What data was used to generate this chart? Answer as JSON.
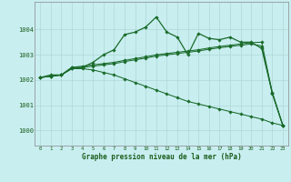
{
  "title": "Graphe pression niveau de la mer (hPa)",
  "bg_color": "#c8eef0",
  "grid_color": "#b0d8d8",
  "line_color": "#1a6b2a",
  "xlim": [
    -0.5,
    23.5
  ],
  "ylim": [
    999.4,
    1005.1
  ],
  "yticks": [
    1000,
    1001,
    1002,
    1003,
    1004
  ],
  "xticks": [
    0,
    1,
    2,
    3,
    4,
    5,
    6,
    7,
    8,
    9,
    10,
    11,
    12,
    13,
    14,
    15,
    16,
    17,
    18,
    19,
    20,
    21,
    22,
    23
  ],
  "series1_x": [
    0,
    1,
    2,
    3,
    4,
    5,
    6,
    7,
    8,
    9,
    10,
    11,
    12,
    13,
    14,
    15,
    16,
    17,
    18,
    19,
    20,
    21,
    22,
    23
  ],
  "series1_y": [
    1002.1,
    1002.2,
    1002.2,
    1002.5,
    1002.5,
    1002.7,
    1003.0,
    1003.2,
    1003.8,
    1003.9,
    1004.1,
    1004.5,
    1003.9,
    1003.7,
    1003.0,
    1003.85,
    1003.65,
    1003.6,
    1003.7,
    1003.5,
    1003.5,
    1003.25,
    1001.5,
    1000.2
  ],
  "series2_x": [
    0,
    1,
    2,
    3,
    4,
    5,
    6,
    7,
    8,
    9,
    10,
    11,
    12,
    13,
    14,
    15,
    16,
    17,
    18,
    19,
    20,
    21,
    22,
    23
  ],
  "series2_y": [
    1002.1,
    1002.15,
    1002.2,
    1002.5,
    1002.55,
    1002.6,
    1002.65,
    1002.7,
    1002.78,
    1002.85,
    1002.92,
    1003.0,
    1003.05,
    1003.1,
    1003.15,
    1003.2,
    1003.27,
    1003.33,
    1003.38,
    1003.43,
    1003.48,
    1003.5,
    1001.5,
    1000.2
  ],
  "series3_x": [
    0,
    1,
    2,
    3,
    4,
    5,
    6,
    7,
    8,
    9,
    10,
    11,
    12,
    13,
    14,
    15,
    16,
    17,
    18,
    19,
    20,
    21,
    22,
    23
  ],
  "series3_y": [
    1002.1,
    1002.15,
    1002.2,
    1002.45,
    1002.5,
    1002.55,
    1002.6,
    1002.65,
    1002.73,
    1002.8,
    1002.87,
    1002.95,
    1003.0,
    1003.05,
    1003.1,
    1003.15,
    1003.22,
    1003.28,
    1003.33,
    1003.38,
    1003.43,
    1003.35,
    1001.45,
    1000.2
  ],
  "series4_x": [
    0,
    1,
    2,
    3,
    4,
    5,
    6,
    7,
    8,
    9,
    10,
    11,
    12,
    13,
    14,
    15,
    16,
    17,
    18,
    19,
    20,
    21,
    22,
    23
  ],
  "series4_y": [
    1002.1,
    1002.15,
    1002.2,
    1002.45,
    1002.45,
    1002.4,
    1002.3,
    1002.2,
    1002.05,
    1001.9,
    1001.75,
    1001.6,
    1001.45,
    1001.3,
    1001.15,
    1001.05,
    1000.95,
    1000.85,
    1000.75,
    1000.65,
    1000.55,
    1000.45,
    1000.3,
    1000.2
  ]
}
